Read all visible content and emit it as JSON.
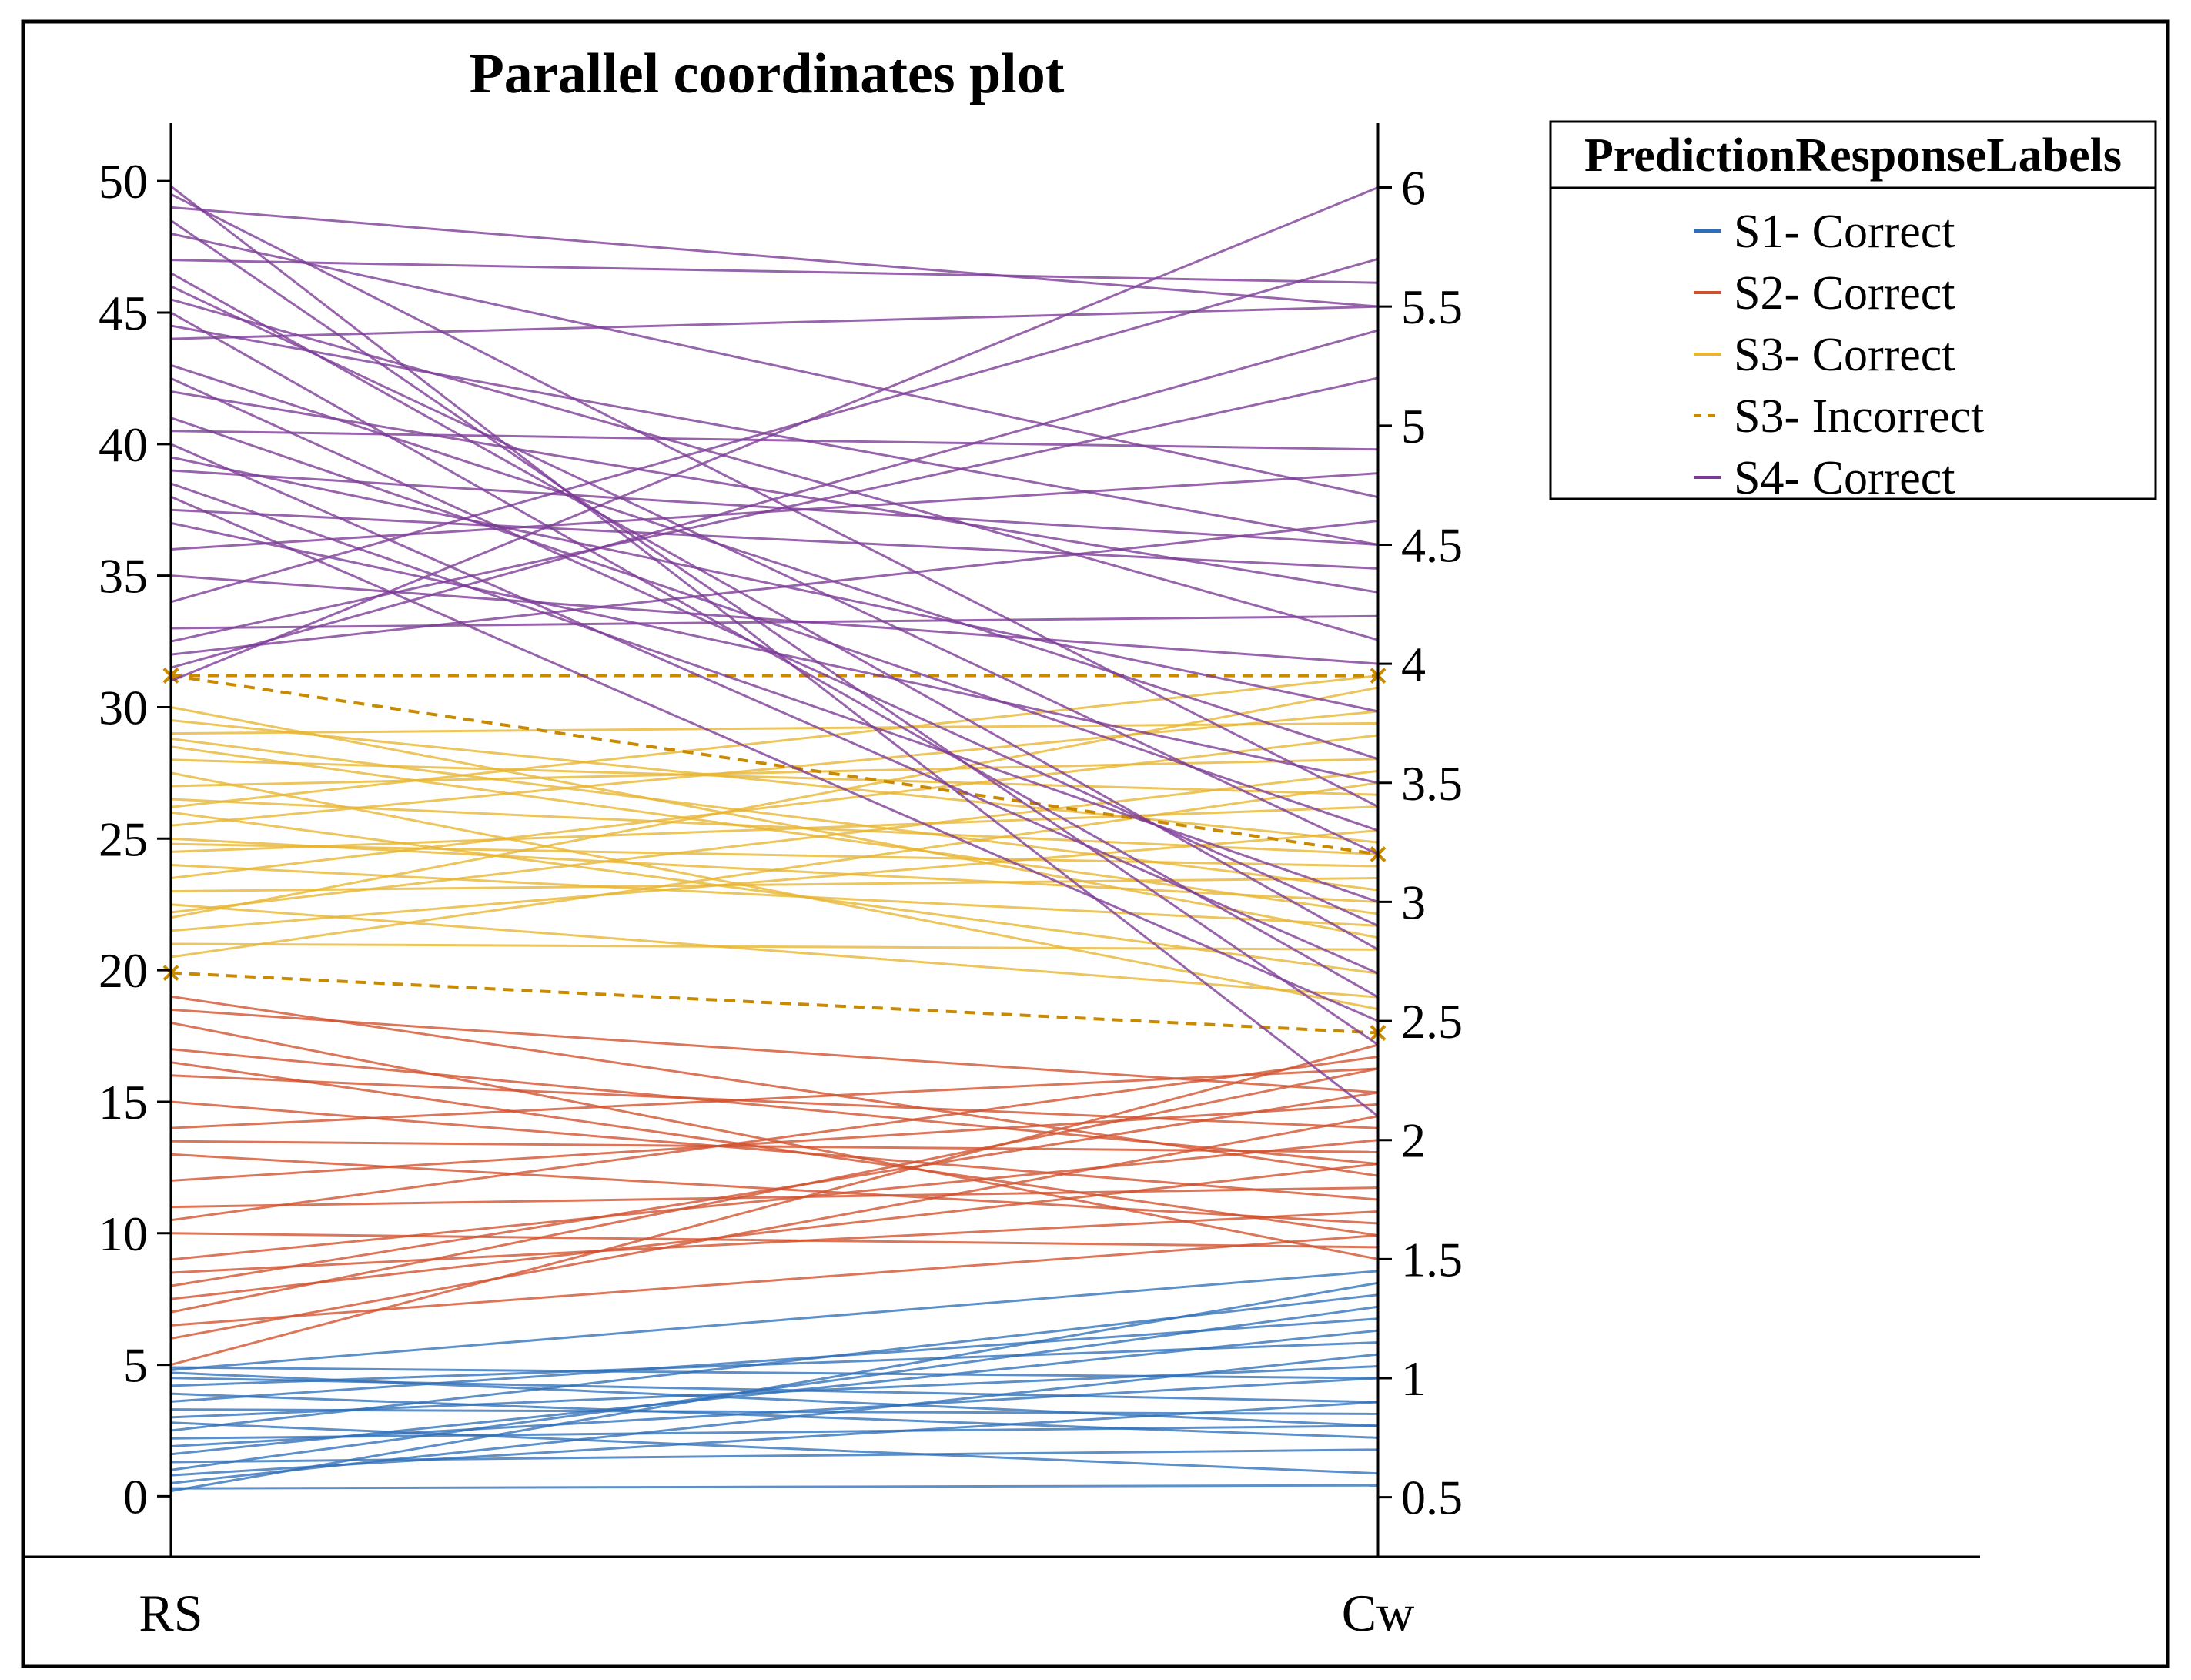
{
  "chart_data": {
    "type": "parallel-coordinates",
    "title": "Parallel coordinates plot",
    "axes": [
      {
        "name": "RS",
        "range": [
          0,
          50
        ],
        "ticks": [
          0,
          5,
          10,
          15,
          20,
          25,
          30,
          35,
          40,
          45,
          50
        ]
      },
      {
        "name": "Cw",
        "range": [
          0.5,
          6
        ],
        "ticks": [
          0.5,
          1,
          1.5,
          2,
          2.5,
          3,
          3.5,
          4,
          4.5,
          5,
          5.5,
          6
        ]
      }
    ],
    "axis_limits": {
      "RS": [
        -2.3,
        52.2
      ],
      "Cw": [
        0.25,
        6.27
      ]
    },
    "legend": {
      "title": "PredictionResponseLabels",
      "position": "top-right",
      "entries": [
        {
          "label": "S1- Correct",
          "color": "#2f6fb8",
          "style": "solid"
        },
        {
          "label": "S2- Correct",
          "color": "#d2502b",
          "style": "solid"
        },
        {
          "label": "S3- Correct",
          "color": "#e8b530",
          "style": "solid"
        },
        {
          "label": "S3- Incorrect",
          "color": "#c98a00",
          "style": "dashed"
        },
        {
          "label": "S4- Correct",
          "color": "#7b3a96",
          "style": "solid"
        }
      ]
    },
    "series": [
      {
        "name": "S1- Correct",
        "color": "#2f6fb8",
        "lines": [
          {
            "RS": 0.2,
            "Cw": 1.4
          },
          {
            "RS": 0.5,
            "Cw": 1.1
          },
          {
            "RS": 0.8,
            "Cw": 0.9
          },
          {
            "RS": 1.0,
            "Cw": 1.3
          },
          {
            "RS": 1.3,
            "Cw": 0.7
          },
          {
            "RS": 1.6,
            "Cw": 1.2
          },
          {
            "RS": 1.9,
            "Cw": 1.0
          },
          {
            "RS": 2.2,
            "Cw": 0.8
          },
          {
            "RS": 2.5,
            "Cw": 1.35
          },
          {
            "RS": 2.8,
            "Cw": 0.6
          },
          {
            "RS": 3.0,
            "Cw": 1.05
          },
          {
            "RS": 3.3,
            "Cw": 0.85
          },
          {
            "RS": 3.6,
            "Cw": 1.25
          },
          {
            "RS": 3.9,
            "Cw": 0.75
          },
          {
            "RS": 4.2,
            "Cw": 1.15
          },
          {
            "RS": 4.5,
            "Cw": 0.9
          },
          {
            "RS": 4.7,
            "Cw": 0.8
          },
          {
            "RS": 4.8,
            "Cw": 1.45
          },
          {
            "RS": 0.3,
            "Cw": 0.55
          },
          {
            "RS": 4.9,
            "Cw": 1.0
          }
        ]
      },
      {
        "name": "S2- Correct",
        "color": "#d2502b",
        "lines": [
          {
            "RS": 5.0,
            "Cw": 2.4
          },
          {
            "RS": 6.0,
            "Cw": 2.1
          },
          {
            "RS": 6.5,
            "Cw": 1.6
          },
          {
            "RS": 7.0,
            "Cw": 2.3
          },
          {
            "RS": 7.5,
            "Cw": 1.9
          },
          {
            "RS": 8.0,
            "Cw": 2.2
          },
          {
            "RS": 8.5,
            "Cw": 1.7
          },
          {
            "RS": 9.0,
            "Cw": 2.0
          },
          {
            "RS": 10.0,
            "Cw": 1.55
          },
          {
            "RS": 10.5,
            "Cw": 2.35
          },
          {
            "RS": 11.0,
            "Cw": 1.8
          },
          {
            "RS": 12.0,
            "Cw": 2.15
          },
          {
            "RS": 13.0,
            "Cw": 1.65
          },
          {
            "RS": 13.5,
            "Cw": 1.95
          },
          {
            "RS": 14.0,
            "Cw": 2.3
          },
          {
            "RS": 15.0,
            "Cw": 1.75
          },
          {
            "RS": 16.0,
            "Cw": 2.05
          },
          {
            "RS": 16.5,
            "Cw": 1.6
          },
          {
            "RS": 17.0,
            "Cw": 1.9
          },
          {
            "RS": 18.0,
            "Cw": 1.5
          },
          {
            "RS": 18.5,
            "Cw": 2.2
          },
          {
            "RS": 19.0,
            "Cw": 1.85
          }
        ]
      },
      {
        "name": "S3- Correct",
        "color": "#e8b530",
        "lines": [
          {
            "RS": 20.5,
            "Cw": 3.5
          },
          {
            "RS": 21.0,
            "Cw": 2.8
          },
          {
            "RS": 21.5,
            "Cw": 3.3
          },
          {
            "RS": 22.0,
            "Cw": 3.9
          },
          {
            "RS": 22.5,
            "Cw": 2.6
          },
          {
            "RS": 23.0,
            "Cw": 3.1
          },
          {
            "RS": 23.5,
            "Cw": 3.7
          },
          {
            "RS": 24.0,
            "Cw": 2.9
          },
          {
            "RS": 24.5,
            "Cw": 3.4
          },
          {
            "RS": 25.0,
            "Cw": 3.0
          },
          {
            "RS": 25.5,
            "Cw": 3.8
          },
          {
            "RS": 26.0,
            "Cw": 2.7
          },
          {
            "RS": 26.5,
            "Cw": 3.2
          },
          {
            "RS": 27.0,
            "Cw": 3.6
          },
          {
            "RS": 27.5,
            "Cw": 2.55
          },
          {
            "RS": 28.0,
            "Cw": 3.45
          },
          {
            "RS": 28.5,
            "Cw": 2.95
          },
          {
            "RS": 29.0,
            "Cw": 3.75
          },
          {
            "RS": 29.5,
            "Cw": 3.25
          },
          {
            "RS": 30.0,
            "Cw": 2.85
          },
          {
            "RS": 22.2,
            "Cw": 3.55
          },
          {
            "RS": 24.8,
            "Cw": 3.15
          },
          {
            "RS": 26.2,
            "Cw": 3.95
          },
          {
            "RS": 28.8,
            "Cw": 3.05
          }
        ]
      },
      {
        "name": "S3- Incorrect",
        "color": "#c98a00",
        "dashed": true,
        "lines": [
          {
            "RS": 31.2,
            "Cw": 3.95
          },
          {
            "RS": 31.2,
            "Cw": 3.2
          },
          {
            "RS": 19.9,
            "Cw": 2.45
          }
        ]
      },
      {
        "name": "S4- Correct",
        "color": "#7b3a96",
        "lines": [
          {
            "RS": 31.0,
            "Cw": 6.0
          },
          {
            "RS": 31.5,
            "Cw": 5.4
          },
          {
            "RS": 32.0,
            "Cw": 4.6
          },
          {
            "RS": 32.5,
            "Cw": 5.2
          },
          {
            "RS": 33.0,
            "Cw": 4.2
          },
          {
            "RS": 34.0,
            "Cw": 5.7
          },
          {
            "RS": 35.0,
            "Cw": 4.0
          },
          {
            "RS": 36.0,
            "Cw": 4.8
          },
          {
            "RS": 37.0,
            "Cw": 3.5
          },
          {
            "RS": 37.5,
            "Cw": 4.4
          },
          {
            "RS": 38.0,
            "Cw": 2.5
          },
          {
            "RS": 38.5,
            "Cw": 3.0
          },
          {
            "RS": 39.0,
            "Cw": 4.5
          },
          {
            "RS": 39.5,
            "Cw": 3.8
          },
          {
            "RS": 40.0,
            "Cw": 2.7
          },
          {
            "RS": 40.5,
            "Cw": 4.9
          },
          {
            "RS": 41.0,
            "Cw": 3.3
          },
          {
            "RS": 42.0,
            "Cw": 4.3
          },
          {
            "RS": 42.5,
            "Cw": 2.9
          },
          {
            "RS": 43.0,
            "Cw": 3.6
          },
          {
            "RS": 44.0,
            "Cw": 5.5
          },
          {
            "RS": 45.0,
            "Cw": 2.6
          },
          {
            "RS": 45.5,
            "Cw": 4.1
          },
          {
            "RS": 46.0,
            "Cw": 3.2
          },
          {
            "RS": 46.5,
            "Cw": 2.8
          },
          {
            "RS": 47.0,
            "Cw": 5.6
          },
          {
            "RS": 48.0,
            "Cw": 4.7
          },
          {
            "RS": 48.5,
            "Cw": 2.4
          },
          {
            "RS": 49.0,
            "Cw": 5.5
          },
          {
            "RS": 49.5,
            "Cw": 3.4
          },
          {
            "RS": 49.8,
            "Cw": 2.1
          },
          {
            "RS": 44.5,
            "Cw": 4.5
          }
        ]
      }
    ]
  }
}
